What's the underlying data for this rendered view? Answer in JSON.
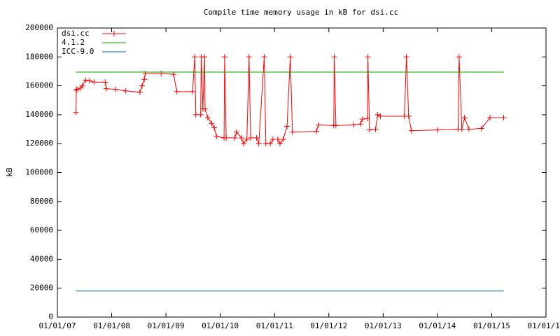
{
  "chart_data": {
    "type": "line",
    "title": "Compile time memory usage in kB for dsi.cc",
    "y_label": "kB",
    "xlim": [
      2007,
      2016
    ],
    "xticks": [
      {
        "value": 2007,
        "label": "01/01/07"
      },
      {
        "value": 2008,
        "label": "01/01/08"
      },
      {
        "value": 2009,
        "label": "01/01/09"
      },
      {
        "value": 2010,
        "label": "01/01/10"
      },
      {
        "value": 2011,
        "label": "01/01/11"
      },
      {
        "value": 2012,
        "label": "01/01/12"
      },
      {
        "value": 2013,
        "label": "01/01/13"
      },
      {
        "value": 2014,
        "label": "01/01/14"
      },
      {
        "value": 2015,
        "label": "01/01/15"
      },
      {
        "value": 2016,
        "label": "01/01/16"
      }
    ],
    "ylim": [
      0,
      200000
    ],
    "yticks": [
      0,
      20000,
      40000,
      60000,
      80000,
      100000,
      120000,
      140000,
      160000,
      180000,
      200000
    ],
    "grid": false,
    "legend": "top-left",
    "series": [
      {
        "name": "dsi.cc",
        "color": "#ff0000",
        "marker": "plus",
        "x": [
          2007.34,
          2007.35,
          2007.36,
          2007.43,
          2007.46,
          2007.52,
          2007.59,
          2007.68,
          2007.88,
          2007.9,
          2008.07,
          2008.26,
          2008.52,
          2008.56,
          2008.6,
          2008.62,
          2008.91,
          2009.14,
          2009.2,
          2009.49,
          2009.53,
          2009.55,
          2009.64,
          2009.65,
          2009.68,
          2009.71,
          2009.72,
          2009.77,
          2009.84,
          2009.89,
          2009.93,
          2010.07,
          2010.08,
          2010.11,
          2010.27,
          2010.3,
          2010.39,
          2010.43,
          2010.49,
          2010.53,
          2010.56,
          2010.67,
          2010.71,
          2010.81,
          2010.84,
          2010.92,
          2010.97,
          2011.06,
          2011.1,
          2011.16,
          2011.23,
          2011.29,
          2011.33,
          2011.77,
          2011.81,
          2012.09,
          2012.1,
          2012.13,
          2012.45,
          2012.58,
          2012.62,
          2012.71,
          2012.72,
          2012.75,
          2012.86,
          2012.9,
          2012.95,
          2013.39,
          2013.43,
          2013.47,
          2013.52,
          2014.0,
          2014.38,
          2014.4,
          2014.45,
          2014.5,
          2014.58,
          2014.81,
          2014.97,
          2015.22
        ],
        "values": [
          141500,
          157000,
          157500,
          158500,
          160000,
          164000,
          163500,
          162500,
          162500,
          158000,
          157500,
          156500,
          155500,
          160000,
          164500,
          168500,
          168500,
          168000,
          156000,
          156000,
          180000,
          140000,
          140000,
          180000,
          144000,
          180000,
          144000,
          138000,
          134000,
          131000,
          125000,
          124000,
          180000,
          124000,
          124000,
          128000,
          124000,
          120000,
          123000,
          180000,
          124000,
          124000,
          120000,
          180000,
          120000,
          120000,
          123000,
          123000,
          120000,
          123000,
          132000,
          180000,
          128000,
          128500,
          133000,
          132500,
          180000,
          132500,
          133000,
          133500,
          137000,
          137500,
          180000,
          129500,
          130000,
          140000,
          139000,
          139000,
          180000,
          139000,
          129000,
          129500,
          130000,
          180000,
          130000,
          138000,
          130000,
          130500,
          138000,
          138000
        ]
      },
      {
        "name": "4.1.2",
        "color": "#00a000",
        "x": [
          2007.34,
          2015.22
        ],
        "values": [
          169500,
          169500
        ]
      },
      {
        "name": "ICC-9.0",
        "color": "#0060c0",
        "x": [
          2007.34,
          2015.22
        ],
        "values": [
          18000,
          18000
        ]
      }
    ]
  }
}
